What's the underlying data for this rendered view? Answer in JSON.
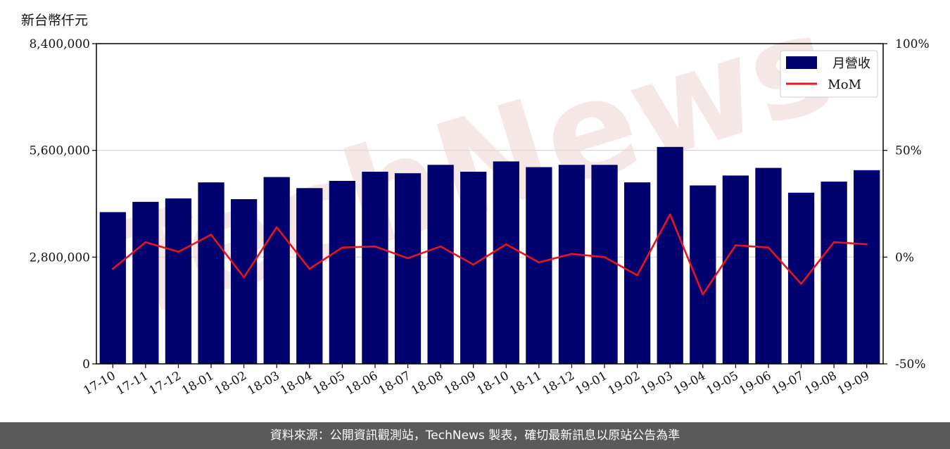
{
  "unit_label": "新台幣仟元",
  "footer": {
    "text": "資料來源：公開資訊觀測站，TechNews 製表，確切最新訊息以原站公告為準"
  },
  "watermark": {
    "text": "TechNews",
    "color": "#f0d4d4"
  },
  "chart_data": {
    "type": "bar",
    "title": "",
    "categories": [
      "17-10",
      "17-11",
      "17-12",
      "18-01",
      "18-02",
      "18-03",
      "18-04",
      "18-05",
      "18-06",
      "18-07",
      "18-08",
      "18-09",
      "18-10",
      "18-11",
      "18-12",
      "19-01",
      "19-02",
      "19-03",
      "19-04",
      "19-05",
      "19-06",
      "19-07",
      "19-08",
      "19-09"
    ],
    "series": [
      {
        "name": "月營收",
        "axis": "left",
        "type": "bar",
        "color": "#00006e",
        "values": [
          3980000,
          4250000,
          4340000,
          4760000,
          4320000,
          4900000,
          4610000,
          4800000,
          5040000,
          5000000,
          5220000,
          5040000,
          5310000,
          5160000,
          5220000,
          5220000,
          4760000,
          5690000,
          4680000,
          4940000,
          5140000,
          4490000,
          4780000,
          5080000
        ]
      },
      {
        "name": "MoM",
        "axis": "right",
        "type": "line",
        "color": "#e8141e",
        "values": [
          -5.5,
          7.0,
          2.5,
          10.5,
          -9.5,
          14.0,
          -5.5,
          4.5,
          5.0,
          -0.5,
          5.0,
          -3.5,
          6.0,
          -2.5,
          1.5,
          0.0,
          -8.5,
          20.0,
          -17.5,
          5.5,
          4.5,
          -12.5,
          7.0,
          6.0
        ]
      }
    ],
    "ylim": [
      0,
      8400000
    ],
    "y_ticks": [
      0,
      2800000,
      5600000,
      8400000
    ],
    "y_tick_labels": [
      "0",
      "2,800,000",
      "5,600,000",
      "8,400,000"
    ],
    "y2lim": [
      -50,
      100
    ],
    "y2_ticks": [
      -50,
      0,
      50,
      100
    ],
    "y2_tick_labels": [
      "-50%",
      "0%",
      "50%",
      "100%"
    ],
    "grid": "horizontal",
    "legend_position": "top-right",
    "xlabel": "",
    "ylabel": ""
  }
}
